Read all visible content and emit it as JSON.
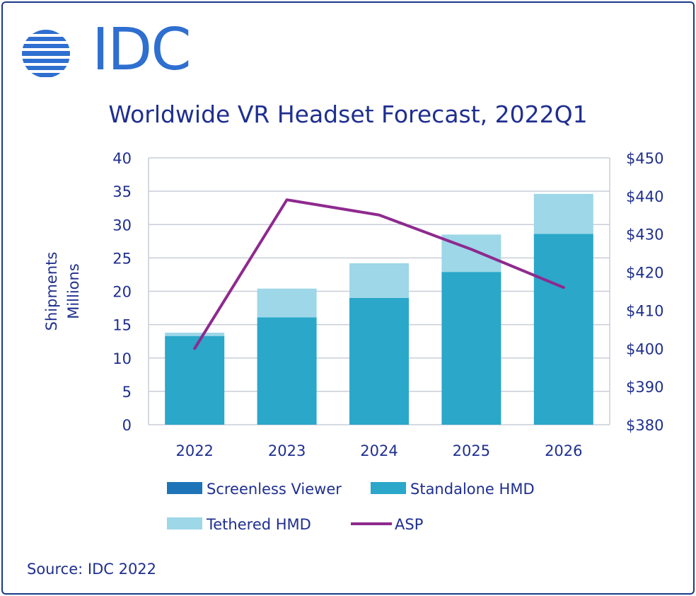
{
  "logo": {
    "text": "IDC",
    "color": "#2e6fd0"
  },
  "source": "Source: IDC 2022",
  "chart_data": {
    "type": "bar",
    "stacked": true,
    "title": "Worldwide VR Headset Forecast, 2022Q1",
    "ylabel": [
      "Shipments",
      "Millions"
    ],
    "y2label": "",
    "categories": [
      "2022",
      "2023",
      "2024",
      "2025",
      "2026"
    ],
    "ylim": [
      0,
      40
    ],
    "yticks": [
      "0",
      "5",
      "10",
      "15",
      "20",
      "25",
      "30",
      "35",
      "40"
    ],
    "y2lim": [
      380,
      450
    ],
    "y2ticks": [
      "$380",
      "$390",
      "$400",
      "$410",
      "$420",
      "$430",
      "$440",
      "$450"
    ],
    "grid": true,
    "legend_position": "bottom",
    "series": [
      {
        "name": "Screenless Viewer",
        "kind": "bar",
        "color": "#1f74b8",
        "values": [
          0,
          0,
          0,
          0,
          0
        ]
      },
      {
        "name": "Standalone HMD",
        "kind": "bar",
        "color": "#2aa7c9",
        "values": [
          13.3,
          16.1,
          19.0,
          22.9,
          28.6
        ]
      },
      {
        "name": "Tethered HMD",
        "kind": "bar",
        "color": "#9dd7e8",
        "values": [
          0.5,
          4.3,
          5.2,
          5.6,
          6.0
        ]
      },
      {
        "name": "ASP",
        "kind": "line",
        "axis": "right",
        "color": "#8e2a8e",
        "values": [
          400,
          439,
          435,
          426,
          416
        ]
      }
    ]
  }
}
